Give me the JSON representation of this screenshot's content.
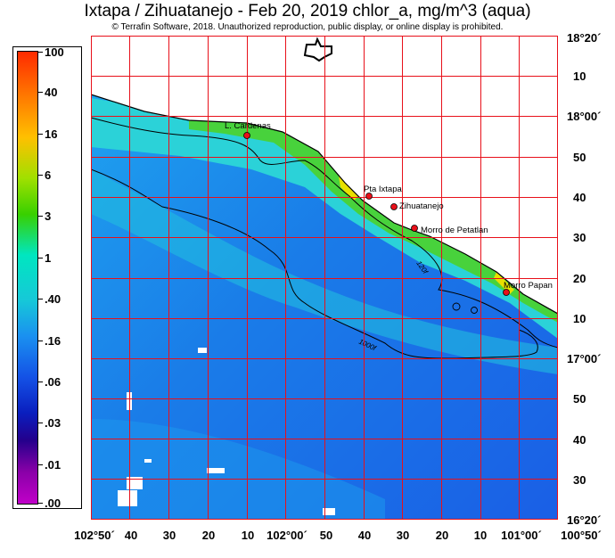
{
  "title": "Ixtapa / Zihuatanejo - Feb 20, 2019  chlor_a, mg/m^3 (aqua)",
  "copyright": "© Terrafin Software,  2018.  Unauthorized reproduction, public display, or online display is prohibited.",
  "colorbar": {
    "labels": [
      "100",
      "40",
      "16",
      "6",
      "3",
      "1",
      ".40",
      ".16",
      ".06",
      ".03",
      ".01",
      ".00"
    ],
    "colors": [
      "#ff2a00",
      "#ff7a00",
      "#ffc000",
      "#a0e000",
      "#38d000",
      "#00e6c0",
      "#16c8d8",
      "#1a90f0",
      "#1452e6",
      "#0a1ebe",
      "#24008c",
      "#c000c8"
    ]
  },
  "longitude_labels": [
    "102°50´",
    "40",
    "30",
    "20",
    "10",
    "102°00´",
    "50",
    "40",
    "30",
    "20",
    "10",
    "101°00´",
    "100°50´"
  ],
  "latitude_labels": [
    "18°20´",
    "10",
    "18°00´",
    "50",
    "40",
    "30",
    "20",
    "10",
    "17°00´",
    "50",
    "40",
    "30",
    "16°20´"
  ],
  "places": [
    "L. Cardenas",
    "Pta Ixtapa",
    "Zihuatanejo",
    "Morro de Petatlan",
    "Morro Papan"
  ],
  "contour_labels": [
    "120f",
    "1000f"
  ],
  "colors": {
    "grid": "#e8101a",
    "land": "#ffffff",
    "ocean_deep": "#1a63e8",
    "ocean_mid": "#1f9ff0",
    "ocean_shelf": "#2bd8d8",
    "coast_green": "#4ad23a",
    "coast_yellow": "#e8e000",
    "marker": "#e8101a"
  }
}
